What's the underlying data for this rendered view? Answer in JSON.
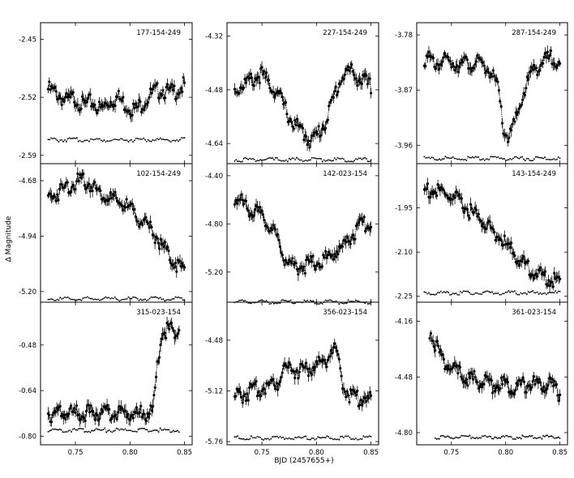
{
  "figure": {
    "ylabel": "Δ Magnitude",
    "xlabel": "BJD (2457655+)"
  },
  "chart_data": [
    {
      "type": "scatter",
      "title": "177-154-249",
      "yticks": [
        -2.45,
        -2.52,
        -2.59
      ],
      "ylim": [
        -2.6,
        -2.43
      ],
      "xticks": [],
      "xlim": [
        0.718,
        0.857
      ],
      "grid": false,
      "series": [
        {
          "kind": "target",
          "x": [
            0.725,
            0.733,
            0.741,
            0.749,
            0.757,
            0.765,
            0.773,
            0.781,
            0.789,
            0.797,
            0.805,
            0.813,
            0.821,
            0.829,
            0.837,
            0.845,
            0.85
          ],
          "y": [
            -2.505,
            -2.51,
            -2.52,
            -2.515,
            -2.525,
            -2.52,
            -2.53,
            -2.52,
            -2.515,
            -2.525,
            -2.53,
            -2.52,
            -2.51,
            -2.505,
            -2.51,
            -2.505,
            -2.5
          ]
        },
        {
          "kind": "comparison",
          "x": [
            0.725,
            0.85
          ],
          "y": [
            -2.57,
            -2.57
          ]
        }
      ]
    },
    {
      "type": "scatter",
      "title": "227-154-249",
      "yticks": [
        -4.32,
        -4.48,
        -4.64
      ],
      "ylim": [
        -4.7,
        -4.28
      ],
      "xticks": [],
      "xlim": [
        0.718,
        0.857
      ],
      "grid": false,
      "series": [
        {
          "kind": "target",
          "x": [
            0.725,
            0.733,
            0.741,
            0.749,
            0.757,
            0.765,
            0.771,
            0.777,
            0.783,
            0.789,
            0.795,
            0.801,
            0.807,
            0.813,
            0.819,
            0.825,
            0.831,
            0.837,
            0.843,
            0.85
          ],
          "y": [
            -4.47,
            -4.45,
            -4.44,
            -4.42,
            -4.45,
            -4.48,
            -4.52,
            -4.56,
            -4.58,
            -4.6,
            -4.62,
            -4.6,
            -4.57,
            -4.52,
            -4.46,
            -4.42,
            -4.41,
            -4.43,
            -4.44,
            -4.46
          ]
        },
        {
          "kind": "comparison",
          "x": [
            0.725,
            0.85
          ],
          "y": [
            -4.685,
            -4.685
          ]
        }
      ]
    },
    {
      "type": "scatter",
      "title": "287-154-249",
      "yticks": [
        -3.78,
        -3.87,
        -3.96
      ],
      "ylim": [
        -3.99,
        -3.76
      ],
      "xticks": [],
      "xlim": [
        0.718,
        0.857
      ],
      "grid": false,
      "series": [
        {
          "kind": "target",
          "x": [
            0.725,
            0.735,
            0.745,
            0.755,
            0.765,
            0.775,
            0.785,
            0.793,
            0.798,
            0.803,
            0.808,
            0.813,
            0.818,
            0.825,
            0.833,
            0.841,
            0.85
          ],
          "y": [
            -3.81,
            -3.82,
            -3.815,
            -3.82,
            -3.82,
            -3.82,
            -3.83,
            -3.86,
            -3.93,
            -3.94,
            -3.92,
            -3.89,
            -3.86,
            -3.83,
            -3.82,
            -3.81,
            -3.815
          ]
        },
        {
          "kind": "comparison",
          "x": [
            0.725,
            0.85
          ],
          "y": [
            -3.98,
            -3.98
          ]
        }
      ]
    },
    {
      "type": "scatter",
      "title": "102-154-249",
      "yticks": [
        -4.68,
        -4.94,
        -5.2
      ],
      "ylim": [
        -5.25,
        -4.6
      ],
      "xticks": [],
      "xlim": [
        0.718,
        0.857
      ],
      "grid": false,
      "series": [
        {
          "kind": "target",
          "x": [
            0.725,
            0.733,
            0.741,
            0.749,
            0.757,
            0.765,
            0.773,
            0.781,
            0.789,
            0.797,
            0.805,
            0.813,
            0.821,
            0.829,
            0.837,
            0.845,
            0.85
          ],
          "y": [
            -4.74,
            -4.72,
            -4.69,
            -4.67,
            -4.66,
            -4.68,
            -4.72,
            -4.74,
            -4.76,
            -4.78,
            -4.82,
            -4.86,
            -4.9,
            -4.96,
            -5.02,
            -5.06,
            -5.08
          ]
        },
        {
          "kind": "comparison",
          "x": [
            0.725,
            0.85
          ],
          "y": [
            -5.23,
            -5.23
          ]
        }
      ]
    },
    {
      "type": "scatter",
      "title": "142-023-154",
      "yticks": [
        -4.4,
        -4.8,
        -5.2
      ],
      "ylim": [
        -5.45,
        -4.3
      ],
      "xticks": [],
      "xlim": [
        0.718,
        0.857
      ],
      "grid": false,
      "series": [
        {
          "kind": "target",
          "x": [
            0.725,
            0.733,
            0.741,
            0.749,
            0.757,
            0.765,
            0.771,
            0.777,
            0.785,
            0.793,
            0.801,
            0.809,
            0.817,
            0.825,
            0.833,
            0.841,
            0.85
          ],
          "y": [
            -4.55,
            -4.6,
            -4.65,
            -4.7,
            -4.78,
            -4.9,
            -5.05,
            -5.1,
            -5.12,
            -5.1,
            -5.08,
            -5.05,
            -5.0,
            -4.95,
            -4.85,
            -4.78,
            -4.75
          ]
        },
        {
          "kind": "comparison",
          "x": [
            0.725,
            0.85
          ],
          "y": [
            -5.44,
            -5.44
          ]
        }
      ]
    },
    {
      "type": "scatter",
      "title": "143-154-249",
      "yticks": [
        -1.95,
        -2.1,
        -2.25
      ],
      "ylim": [
        -2.27,
        -1.8
      ],
      "xticks": [],
      "xlim": [
        0.718,
        0.857
      ],
      "grid": false,
      "series": [
        {
          "kind": "target",
          "x": [
            0.725,
            0.735,
            0.745,
            0.755,
            0.765,
            0.775,
            0.785,
            0.795,
            0.805,
            0.815,
            0.825,
            0.835,
            0.845,
            0.85
          ],
          "y": [
            -1.875,
            -1.88,
            -1.89,
            -1.91,
            -1.94,
            -1.97,
            -2.0,
            -2.04,
            -2.08,
            -2.12,
            -2.15,
            -2.17,
            -2.18,
            -2.18
          ]
        },
        {
          "kind": "comparison",
          "x": [
            0.725,
            0.85
          ],
          "y": [
            -2.235,
            -2.235
          ]
        }
      ]
    },
    {
      "type": "scatter",
      "title": "315-023-154",
      "yticks": [
        -0.48,
        -0.64,
        -0.8
      ],
      "ylim": [
        -0.83,
        -0.33
      ],
      "xticks": [
        0.75,
        0.8,
        0.85
      ],
      "xlim": [
        0.718,
        0.857
      ],
      "grid": false,
      "series": [
        {
          "kind": "target",
          "x": [
            0.725,
            0.745,
            0.765,
            0.785,
            0.805,
            0.815,
            0.82,
            0.823,
            0.826,
            0.83,
            0.835,
            0.84,
            0.845
          ],
          "y": [
            -0.705,
            -0.705,
            -0.705,
            -0.705,
            -0.705,
            -0.705,
            -0.705,
            -0.64,
            -0.5,
            -0.42,
            -0.41,
            -0.415,
            -0.41
          ]
        },
        {
          "kind": "comparison",
          "x": [
            0.725,
            0.845
          ],
          "y": [
            -0.775,
            -0.775
          ]
        }
      ]
    },
    {
      "type": "scatter",
      "title": "356-023-154",
      "yticks": [
        -4.48,
        -5.12,
        -5.76
      ],
      "ylim": [
        -5.8,
        -4.0
      ],
      "xticks": [
        0.75,
        0.8,
        0.85
      ],
      "xlim": [
        0.718,
        0.857
      ],
      "grid": false,
      "series": [
        {
          "kind": "target",
          "x": [
            0.725,
            0.735,
            0.745,
            0.755,
            0.765,
            0.77,
            0.78,
            0.79,
            0.8,
            0.81,
            0.815,
            0.82,
            0.825,
            0.83,
            0.835,
            0.845,
            0.85
          ],
          "y": [
            -5.15,
            -5.1,
            -5.05,
            -5.0,
            -4.95,
            -4.75,
            -4.8,
            -4.8,
            -4.75,
            -4.65,
            -4.5,
            -4.72,
            -5.0,
            -5.1,
            -5.15,
            -5.15,
            -5.2
          ]
        },
        {
          "kind": "comparison",
          "x": [
            0.725,
            0.85
          ],
          "y": [
            -5.7,
            -5.7
          ]
        }
      ]
    },
    {
      "type": "scatter",
      "title": "361-023-154",
      "yticks": [
        -4.16,
        -4.48,
        -4.8
      ],
      "ylim": [
        -4.87,
        -4.05
      ],
      "xticks": [
        0.75,
        0.8,
        0.85
      ],
      "xlim": [
        0.718,
        0.857
      ],
      "grid": false,
      "series": [
        {
          "kind": "target",
          "x": [
            0.73,
            0.733,
            0.736,
            0.74,
            0.745,
            0.75,
            0.76,
            0.77,
            0.78,
            0.79,
            0.8,
            0.81,
            0.82,
            0.83,
            0.84,
            0.845,
            0.85
          ],
          "y": [
            -4.2,
            -4.21,
            -4.28,
            -4.33,
            -4.38,
            -4.41,
            -4.45,
            -4.47,
            -4.49,
            -4.5,
            -4.5,
            -4.51,
            -4.5,
            -4.5,
            -4.5,
            -4.52,
            -4.55
          ]
        },
        {
          "kind": "comparison",
          "x": [
            0.735,
            0.85
          ],
          "y": [
            -4.82,
            -4.82
          ]
        }
      ]
    }
  ]
}
